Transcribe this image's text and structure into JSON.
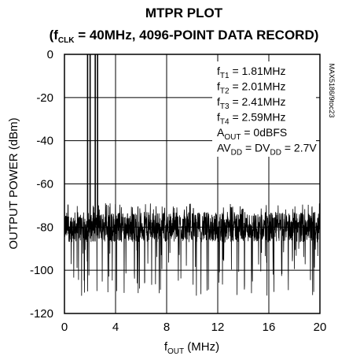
{
  "chart_data": {
    "type": "line",
    "title": {
      "line1": "MTPR PLOT",
      "line2_open": "(f",
      "line2_sub": "CLK",
      "line2_rest": " = 40MHz, 4096-POINT DATA RECORD)"
    },
    "xlabel": {
      "main": "f",
      "sub": "OUT",
      "rest": " (MHz)"
    },
    "ylabel": "OUTPUT POWER (dBm)",
    "xlim": [
      0,
      20
    ],
    "ylim": [
      -120,
      0
    ],
    "xticks": [
      "0",
      "4",
      "8",
      "12",
      "16",
      "20"
    ],
    "yticks": [
      "0",
      "-20",
      "-40",
      "-60",
      "-80",
      "-100",
      "-120"
    ],
    "grid": true,
    "series": [
      {
        "tones_mhz": [
          1.81,
          2.01,
          2.41,
          2.59
        ],
        "tone_level_dbm": 0,
        "noise_floor_center_dbm": -80,
        "noise_floor_top_dbm": -69,
        "noise_floor_bottom_dbm": -110
      }
    ],
    "annotations": [
      {
        "main": "f",
        "sub": "T1",
        "rest": " = 1.81MHz"
      },
      {
        "main": "f",
        "sub": "T2",
        "rest": " = 2.01MHz"
      },
      {
        "main": "f",
        "sub": "T3",
        "rest": " = 2.41MHz"
      },
      {
        "main": "f",
        "sub": "T4",
        "rest": " = 2.59MHz"
      },
      {
        "main": "A",
        "sub": "OUT",
        "rest": " = 0dBFS"
      },
      {
        "main": "AV",
        "sub": "DD",
        "rest": " = DV",
        "sub2": "DD",
        "rest2": " = 2.7V"
      }
    ],
    "side_label": "MAX5186/9toc23",
    "colors": {
      "trace": "#000000",
      "grid": "#000000",
      "background": "#ffffff"
    }
  }
}
